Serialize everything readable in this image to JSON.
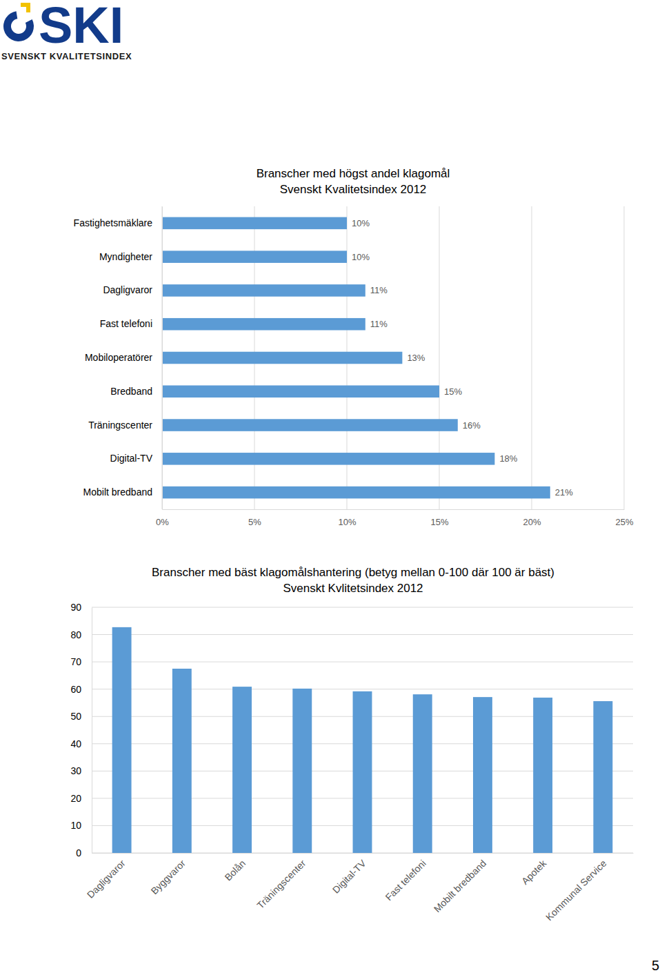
{
  "header": {
    "logo": "SKI",
    "tagline": "SVENSKT KVALITETSINDEX"
  },
  "page_number": 5,
  "chart_data": [
    {
      "type": "bar",
      "orientation": "horizontal",
      "title": "Branscher med högst andel klagomål",
      "subtitle": "Svenskt Kvalitetsindex 2012",
      "categories": [
        "Fastighetsmäklare",
        "Myndigheter",
        "Dagligvaror",
        "Fast telefoni",
        "Mobiloperatörer",
        "Bredband",
        "Träningscenter",
        "Digital-TV",
        "Mobilt bredband"
      ],
      "values": [
        10,
        10,
        11,
        11,
        13,
        15,
        16,
        18,
        21
      ],
      "value_labels": [
        "10%",
        "10%",
        "11%",
        "11%",
        "13%",
        "15%",
        "16%",
        "18%",
        "21%"
      ],
      "data_labels": true,
      "color": "#5b9bd5",
      "xlim": [
        0,
        25
      ],
      "xticks": [
        {
          "value": 0,
          "label": "0%"
        },
        {
          "value": 5,
          "label": "5%"
        },
        {
          "value": 10,
          "label": "10%"
        },
        {
          "value": 15,
          "label": "15%"
        },
        {
          "value": 20,
          "label": "20%"
        },
        {
          "value": 25,
          "label": "25%"
        }
      ],
      "grid": true
    },
    {
      "type": "bar",
      "title": "Branscher med bäst klagomålshantering (betyg mellan 0-100 där 100 är bäst)",
      "subtitle": "Svenskt Kvlitetsindex 2012",
      "categories": [
        "Dagligvaror",
        "Byggvaror",
        "Bolån",
        "Träningscenter",
        "Digital-TV",
        "Fast telefoni",
        "Mobilt bredband",
        "Apotek",
        "Kommunal Service"
      ],
      "values": [
        82.7,
        67.5,
        60.9,
        60.2,
        59.2,
        58.1,
        57.1,
        56.9,
        55.6
      ],
      "color": "#5b9bd5",
      "ylim": [
        0,
        90
      ],
      "yticks": [
        0,
        10,
        20,
        30,
        40,
        50,
        60,
        70,
        80,
        90
      ],
      "grid": true
    }
  ]
}
